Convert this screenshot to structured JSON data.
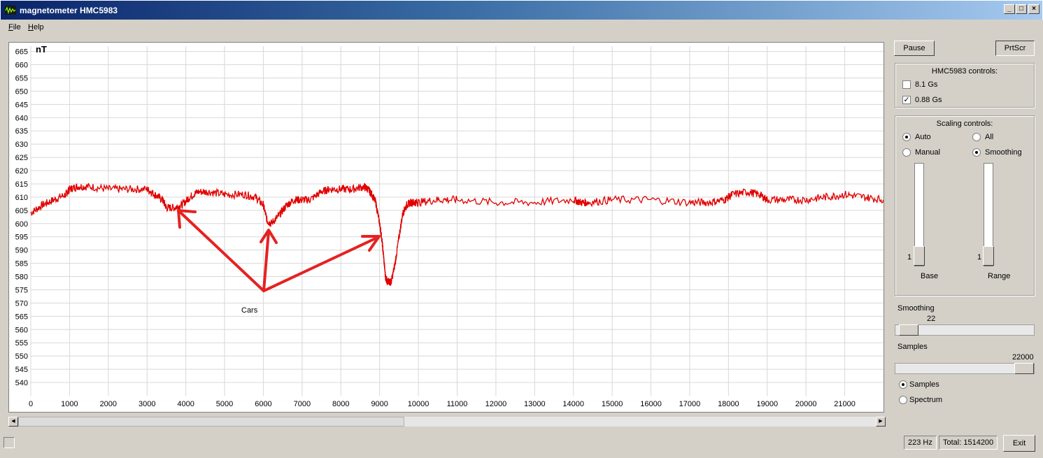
{
  "window": {
    "title": "magnetometer HMC5983",
    "minimize": "_",
    "maximize": "□",
    "close": "×"
  },
  "menu": [
    {
      "key": "F",
      "rest": "ile"
    },
    {
      "key": "H",
      "rest": "elp"
    }
  ],
  "buttons": {
    "pause": "Pause",
    "prtscr": "PrtScr",
    "exit": "Exit"
  },
  "hmc_controls": {
    "title": "HMC5983 controls:",
    "options": [
      {
        "label": "8.1 Gs",
        "checked": false
      },
      {
        "label": "0.88 Gs",
        "checked": true
      }
    ]
  },
  "scaling_controls": {
    "title": "Scaling controls:",
    "auto": "Auto",
    "all": "All",
    "manual": "Manual",
    "smoothing": "Smoothing",
    "selected_left": "Auto",
    "selected_right": "Smoothing",
    "base_label": "Base",
    "base_value": "1",
    "range_label": "Range",
    "range_value": "1"
  },
  "smoothing_slider": {
    "label": "Smoothing",
    "value": "22",
    "fraction": 0.03
  },
  "samples_slider": {
    "label": "Samples",
    "value": "22000",
    "fraction": 1.0
  },
  "mode": {
    "samples": "Samples",
    "spectrum": "Spectrum",
    "selected": "Samples"
  },
  "status": {
    "rate": "223 Hz",
    "total": "Total: 1514200"
  },
  "scroll": {
    "fraction": 0.45
  },
  "annotation": {
    "label": "Cars"
  },
  "chart_data": {
    "type": "line",
    "ylabel": "nT",
    "xlabel": "",
    "xlim": [
      0,
      22000
    ],
    "ylim": [
      535,
      667
    ],
    "grid": true,
    "xticks": [
      0,
      1000,
      2000,
      3000,
      4000,
      5000,
      6000,
      7000,
      8000,
      9000,
      10000,
      11000,
      12000,
      13000,
      14000,
      15000,
      16000,
      17000,
      18000,
      19000,
      20000,
      21000
    ],
    "yticks": [
      540,
      545,
      550,
      555,
      560,
      565,
      570,
      575,
      580,
      585,
      590,
      595,
      600,
      605,
      610,
      615,
      620,
      625,
      630,
      635,
      640,
      645,
      650,
      655,
      660,
      665
    ],
    "series": [
      {
        "color": "#e00000",
        "x": [
          0,
          300,
          600,
          900,
          1000,
          1200,
          1500,
          2000,
          2500,
          3000,
          3200,
          3400,
          3500,
          3700,
          3900,
          4100,
          4300,
          4600,
          5000,
          5500,
          5800,
          6000,
          6100,
          6200,
          6400,
          6600,
          6800,
          7000,
          7200,
          7500,
          7700,
          8000,
          8300,
          8600,
          8700,
          8800,
          8900,
          9000,
          9050,
          9100,
          9150,
          9200,
          9250,
          9300,
          9400,
          9500,
          9600,
          9700,
          9800,
          9900,
          10000,
          10500,
          11000,
          12000,
          13000,
          14000,
          14200,
          14400,
          15000,
          16000,
          17000,
          17500,
          17900,
          18100,
          18500,
          18800,
          19000,
          19500,
          20000,
          20500,
          21000,
          21500,
          22000
        ],
        "y": [
          604,
          607,
          609,
          611,
          613,
          614,
          614,
          613,
          613,
          613,
          611,
          609,
          606,
          606,
          607,
          610,
          612,
          612,
          611,
          611,
          610,
          607,
          601,
          600,
          603,
          607,
          609,
          609,
          609,
          612,
          613,
          613,
          613,
          614,
          613,
          611,
          608,
          600,
          595,
          588,
          580,
          578,
          578,
          578,
          585,
          595,
          604,
          607,
          608,
          608,
          608,
          609,
          609,
          608,
          608,
          609,
          608,
          608,
          609,
          609,
          608,
          608,
          609,
          611,
          612,
          611,
          609,
          609,
          609,
          610,
          611,
          610,
          609
        ]
      }
    ]
  }
}
